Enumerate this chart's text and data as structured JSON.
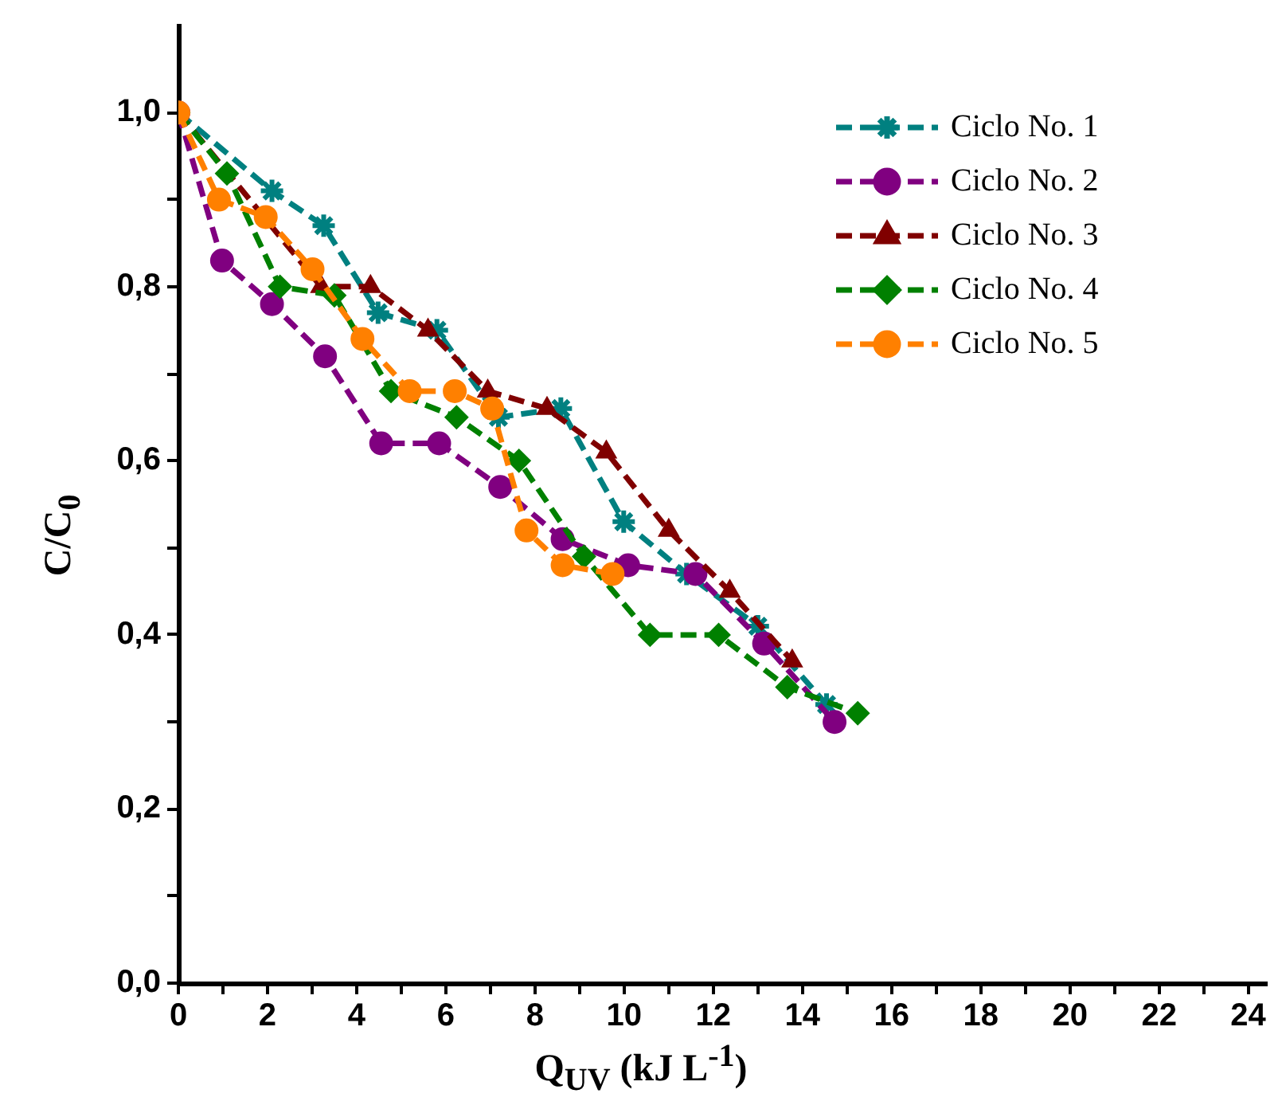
{
  "chart_data": {
    "type": "line",
    "xlabel": "Q$_{UV}$ (kJ L$^{-1}$)",
    "ylabel": "C/C$_{0}$",
    "xlim": [
      0,
      24.4
    ],
    "xticks": [
      0,
      {
        "value": 1,
        "label": null
      },
      2,
      {
        "value": 3,
        "label": null
      },
      4,
      {
        "value": 5,
        "label": null
      },
      6,
      {
        "value": 7,
        "label": null
      },
      8,
      {
        "value": 9,
        "label": null
      },
      10,
      {
        "value": 11,
        "label": null
      },
      12,
      {
        "value": 13,
        "label": null
      },
      14,
      {
        "value": 15,
        "label": null
      },
      16,
      {
        "value": 17,
        "label": null
      },
      18,
      {
        "value": 19,
        "label": null
      },
      20,
      {
        "value": 21,
        "label": null
      },
      22,
      {
        "value": 23,
        "label": null
      },
      24
    ],
    "ylim": [
      0,
      1.1
    ],
    "yticks": [
      {
        "value": 0,
        "label": "0,0"
      },
      {
        "value": 0.1,
        "label": null
      },
      {
        "value": 0.2,
        "label": "0,2"
      },
      {
        "value": 0.3,
        "label": null
      },
      {
        "value": 0.4,
        "label": "0,4"
      },
      {
        "value": 0.5,
        "label": null
      },
      {
        "value": 0.6,
        "label": "0,6"
      },
      {
        "value": 0.7,
        "label": null
      },
      {
        "value": 0.8,
        "label": "0,8"
      },
      {
        "value": 0.9,
        "label": null
      },
      {
        "value": 1.0,
        "label": "1,0"
      }
    ],
    "grid": false,
    "legend": "top right",
    "line_style": "dashed",
    "series": [
      {
        "name": "Ciclo No. 1",
        "color": "#008080",
        "marker": "cross",
        "x": [
          0,
          2.1,
          3.26,
          4.48,
          5.8,
          7.18,
          8.58,
          9.99,
          11.4,
          13.0,
          14.54
        ],
        "values": [
          1.0,
          0.91,
          0.87,
          0.77,
          0.75,
          0.65,
          0.66,
          0.53,
          0.47,
          0.41,
          0.32
        ]
      },
      {
        "name": "Ciclo No. 2",
        "color": "#800080",
        "marker": "circle",
        "x": [
          0,
          0.98,
          2.1,
          3.29,
          4.55,
          5.85,
          7.22,
          8.62,
          10.09,
          11.6,
          13.14,
          14.72
        ],
        "values": [
          1.0,
          0.83,
          0.78,
          0.72,
          0.62,
          0.62,
          0.57,
          0.51,
          0.48,
          0.47,
          0.39,
          0.3
        ]
      },
      {
        "name": "Ciclo No. 3",
        "color": "#800000",
        "marker": "triangle",
        "x": [
          0,
          3.2,
          4.31,
          5.6,
          6.94,
          8.27,
          9.6,
          11.0,
          12.37,
          13.77
        ],
        "values": [
          1.0,
          0.8,
          0.8,
          0.75,
          0.68,
          0.66,
          0.61,
          0.52,
          0.45,
          0.37
        ]
      },
      {
        "name": "Ciclo No. 4",
        "color": "#008000",
        "marker": "diamond",
        "x": [
          0,
          1.09,
          2.28,
          3.5,
          4.77,
          6.24,
          7.64,
          9.1,
          10.58,
          12.12,
          13.66,
          15.24
        ],
        "values": [
          1.0,
          0.93,
          0.8,
          0.79,
          0.68,
          0.65,
          0.6,
          0.49,
          0.4,
          0.4,
          0.34,
          0.31
        ]
      },
      {
        "name": "Ciclo No. 5",
        "color": "#ff8000",
        "marker": "circle",
        "x": [
          0,
          0.91,
          1.96,
          3.01,
          4.13,
          5.19,
          6.2,
          7.04,
          7.81,
          8.62,
          9.74
        ],
        "values": [
          1.0,
          0.9,
          0.88,
          0.82,
          0.74,
          0.68,
          0.68,
          0.66,
          0.52,
          0.48,
          0.47
        ]
      }
    ]
  }
}
